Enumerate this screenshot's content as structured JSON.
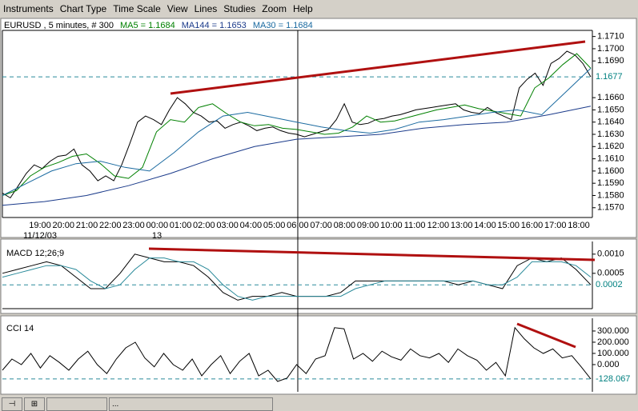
{
  "menu": [
    "Instruments",
    "Chart Type",
    "Time Scale",
    "View",
    "Lines",
    "Studies",
    "Zoom",
    "Help"
  ],
  "status_text": "...",
  "chart_data": [
    {
      "type": "line",
      "title": "EURUSD , 5 minutes, # 300",
      "x_labels": [
        "19:00",
        "20:00",
        "21:00",
        "22:00",
        "23:00",
        "00:00",
        "01:00",
        "02:00",
        "03:00",
        "04:00",
        "05:00",
        "06:00",
        "07:00",
        "08:00",
        "09:00",
        "10:00",
        "11:00",
        "12:00",
        "13:00",
        "14:00",
        "15:00",
        "16:00",
        "17:00",
        "18:00"
      ],
      "date_labels": [
        "11/12/03",
        "13"
      ],
      "ylim": [
        1.1562,
        1.1715
      ],
      "yticks": [
        {
          "value": 1.157,
          "label": "1.1570"
        },
        {
          "value": 1.158,
          "label": "1.1580"
        },
        {
          "value": 1.159,
          "label": "1.1590"
        },
        {
          "value": 1.16,
          "label": "1.1600"
        },
        {
          "value": 1.161,
          "label": "1.1610"
        },
        {
          "value": 1.162,
          "label": "1.1620"
        },
        {
          "value": 1.163,
          "label": "1.1630"
        },
        {
          "value": 1.164,
          "label": "1.1640"
        },
        {
          "value": 1.165,
          "label": "1.1650"
        },
        {
          "value": 1.166,
          "label": "1.1660"
        },
        {
          "value": 1.169,
          "label": "1.1690"
        },
        {
          "value": 1.17,
          "label": "1.1700"
        },
        {
          "value": 1.171,
          "label": "1.1710"
        }
      ],
      "last_value": 1.1677,
      "series": [
        {
          "name": "EURUSD",
          "color": "#000000",
          "values": [
            1.1582,
            1.1578,
            1.1588,
            1.1598,
            1.1605,
            1.1602,
            1.1608,
            1.1612,
            1.1613,
            1.1618,
            1.1605,
            1.16,
            1.1592,
            1.1596,
            1.1592,
            1.1605,
            1.1622,
            1.164,
            1.1645,
            1.1642,
            1.1638,
            1.165,
            1.166,
            1.1655,
            1.1648,
            1.1645,
            1.164,
            1.1641,
            1.1635,
            1.1638,
            1.164,
            1.1637,
            1.1633,
            1.1635,
            1.1636,
            1.1633,
            1.1631,
            1.163,
            1.1628,
            1.163,
            1.1632,
            1.1634,
            1.1642,
            1.1655,
            1.164,
            1.1638,
            1.1639,
            1.1642,
            1.1643,
            1.1645,
            1.1646,
            1.1648,
            1.165,
            1.1651,
            1.1652,
            1.1653,
            1.1654,
            1.1655,
            1.165,
            1.1648,
            1.1647,
            1.1652,
            1.1648,
            1.1645,
            1.1642,
            1.1668,
            1.1675,
            1.168,
            1.167,
            1.1688,
            1.1692,
            1.1698,
            1.1695,
            1.1688,
            1.1677
          ]
        },
        {
          "name": "MA5 = 1.1684",
          "color": "#008000",
          "values": [
            1.158,
            1.1584,
            1.1596,
            1.1603,
            1.1607,
            1.1612,
            1.1614,
            1.1606,
            1.1596,
            1.1594,
            1.1603,
            1.1632,
            1.1642,
            1.164,
            1.1652,
            1.1655,
            1.1647,
            1.164,
            1.1637,
            1.1638,
            1.1635,
            1.1634,
            1.1632,
            1.163,
            1.1631,
            1.1636,
            1.1645,
            1.164,
            1.1641,
            1.1644,
            1.1647,
            1.165,
            1.1652,
            1.1654,
            1.1651,
            1.1649,
            1.1647,
            1.1645,
            1.1668,
            1.1676,
            1.1687,
            1.1696,
            1.1684
          ]
        },
        {
          "name": "MA144 = 1.1653",
          "color": "#1a3a8a",
          "values": [
            1.1572,
            1.1575,
            1.158,
            1.1588,
            1.1598,
            1.161,
            1.162,
            1.1626,
            1.1628,
            1.163,
            1.1635,
            1.1638,
            1.164,
            1.1646,
            1.1653
          ]
        },
        {
          "name": "MA30 = 1.1684",
          "color": "#1a6aa0",
          "values": [
            1.158,
            1.159,
            1.16,
            1.1606,
            1.1608,
            1.1603,
            1.16,
            1.1615,
            1.1632,
            1.1645,
            1.1648,
            1.1644,
            1.164,
            1.1636,
            1.1633,
            1.1631,
            1.1634,
            1.164,
            1.1642,
            1.1645,
            1.1648,
            1.165,
            1.1646,
            1.1665,
            1.1684
          ]
        }
      ]
    },
    {
      "type": "line",
      "title": "MACD 12;26;9",
      "ylim": [
        -0.0004,
        0.00133
      ],
      "yticks": [
        {
          "value": 0.001,
          "label": "0.0010"
        },
        0.0005
      ],
      "last_value": 0.0002,
      "series": [
        {
          "name": "MACD",
          "color": "#000000",
          "values": [
            0.0005,
            0.0006,
            0.0007,
            0.0008,
            0.0007,
            0.0004,
            0.0001,
            0.0001,
            0.0005,
            0.001,
            0.0009,
            0.0008,
            0.0008,
            0.0007,
            0.0004,
            0,
            -0.0002,
            -0.0001,
            -0.0001,
            0,
            -0.0001,
            -0.0001,
            -0.0001,
            0,
            0.0003,
            0.0003,
            0.0003,
            0.0003,
            0.0003,
            0.0003,
            0.0003,
            0.0002,
            0.0003,
            0.0002,
            0.0001,
            0.0007,
            0.0009,
            0.0008,
            0.0009,
            0.0006,
            0.0002
          ]
        },
        {
          "name": "Signal",
          "color": "#2a8a9a",
          "values": [
            0.0004,
            0.0005,
            0.0006,
            0.0007,
            0.0007,
            0.0006,
            0.0003,
            0.0001,
            0.0002,
            0.0006,
            0.0009,
            0.0009,
            0.0008,
            0.0008,
            0.0006,
            0.0002,
            -0.0001,
            -0.0002,
            -0.0001,
            -0.0001,
            -0.0001,
            -0.0001,
            -0.0001,
            -0.0001,
            0.0001,
            0.0002,
            0.0003,
            0.0003,
            0.0003,
            0.0003,
            0.0003,
            0.0003,
            0.0003,
            0.0002,
            0.0002,
            0.0004,
            0.0008,
            0.0008,
            0.0008,
            0.0007,
            0.0004
          ]
        }
      ]
    },
    {
      "type": "line",
      "title": "CCI 14",
      "ylim": [
        -243,
        414
      ],
      "yticks": [
        {
          "value": 300,
          "label": "300.000"
        },
        {
          "value": 200,
          "label": "200.000"
        },
        {
          "value": 100,
          "label": "100.000"
        },
        {
          "value": 0,
          "label": "0.000"
        }
      ],
      "last_value": -128.067,
      "series": [
        {
          "name": "CCI",
          "color": "#000000",
          "values": [
            -50,
            50,
            0,
            100,
            -30,
            80,
            20,
            -50,
            50,
            120,
            0,
            -80,
            50,
            150,
            200,
            60,
            -20,
            100,
            0,
            -50,
            50,
            -100,
            0,
            80,
            -80,
            30,
            100,
            -100,
            -50,
            -150,
            -120,
            0,
            -80,
            50,
            80,
            330,
            320,
            50,
            100,
            30,
            120,
            70,
            40,
            140,
            80,
            60,
            100,
            20,
            140,
            80,
            40,
            -50,
            20,
            -100,
            330,
            230,
            150,
            100,
            140,
            60,
            80,
            -20,
            -128.067
          ]
        }
      ]
    }
  ]
}
